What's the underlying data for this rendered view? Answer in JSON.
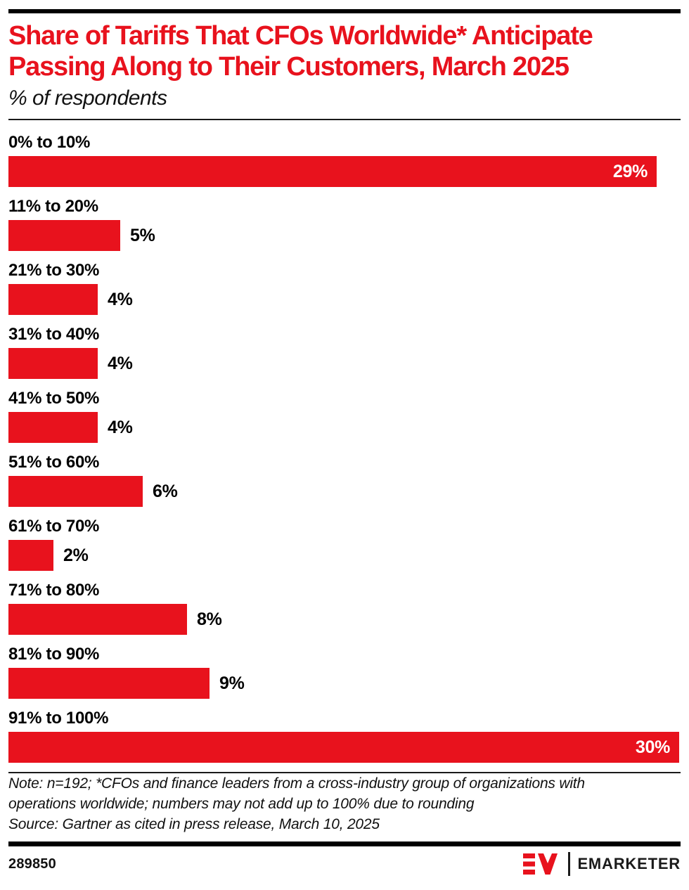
{
  "header": {
    "title_lines": [
      "Share of Tariffs That CFOs Worldwide* Anticipate",
      "Passing Along to Their Customers, March 2025"
    ],
    "subtitle": "% of respondents"
  },
  "chart_data": {
    "type": "bar",
    "orientation": "horizontal",
    "title": "Share of Tariffs That CFOs Worldwide* Anticipate Passing Along to Their Customers, March 2025",
    "subtitle": "% of respondents",
    "categories": [
      "0% to 10%",
      "11% to 20%",
      "21% to 30%",
      "31% to 40%",
      "41% to 50%",
      "51% to 60%",
      "61% to 70%",
      "71% to 80%",
      "81% to 90%",
      "91% to 100%"
    ],
    "values": [
      29,
      5,
      4,
      4,
      4,
      6,
      2,
      8,
      9,
      30
    ],
    "value_suffix": "%",
    "axis_max": 30,
    "grid": false,
    "legend": "none",
    "bar_color": "#e8121d",
    "value_label_inside_color": "#ffffff",
    "value_label_outside_color": "#000000",
    "inside_label_threshold": 20
  },
  "footnote": {
    "note_lines": [
      "Note: n=192; *CFOs and finance leaders from a cross-industry group of organizations with",
      "operations worldwide; numbers may not add up to 100% due to rounding"
    ],
    "source": "Source: Gartner as cited in press release, March 10, 2025"
  },
  "footer": {
    "chart_id": "289850",
    "brand_name": "EMARKETER",
    "logo_icon": "em-monogram-icon",
    "brand_red": "#e8121d",
    "brand_text_color": "#1b1b1b"
  }
}
